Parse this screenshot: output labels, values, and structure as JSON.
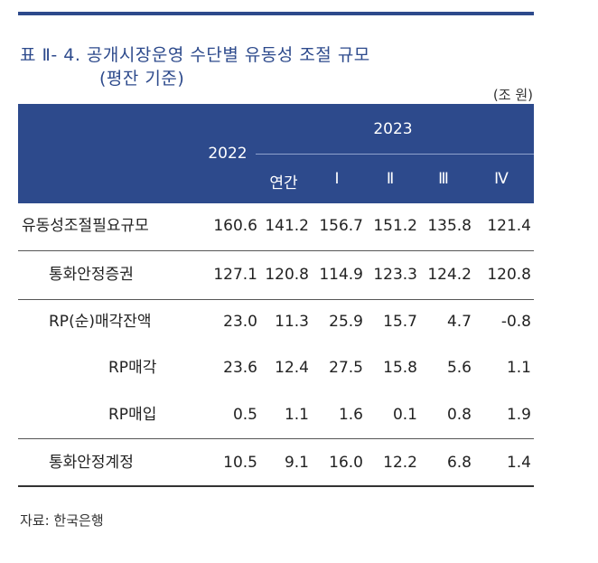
{
  "title_line1": "표 Ⅱ- 4. 공개시장운영 수단별 유동성 조절 규모",
  "title_line2": "(평잔 기준)",
  "unit": "(조 원)",
  "header": {
    "col_2022": "2022",
    "col_2023": "2023",
    "sub": [
      "연간",
      "Ⅰ",
      "Ⅱ",
      "Ⅲ",
      "Ⅳ"
    ]
  },
  "rows": [
    {
      "label": "유동성조절필요규모",
      "values": [
        "160.6",
        "141.2",
        "156.7",
        "151.2",
        "135.8",
        "121.4"
      ]
    },
    {
      "label": "통화안정증권",
      "values": [
        "127.1",
        "120.8",
        "114.9",
        "123.3",
        "124.2",
        "120.8"
      ]
    },
    {
      "label": "RP(순)매각잔액",
      "values": [
        "23.0",
        "11.3",
        "25.9",
        "15.7",
        "4.7",
        "-0.8"
      ]
    },
    {
      "label": "RP매각",
      "values": [
        "23.6",
        "12.4",
        "27.5",
        "15.8",
        "5.6",
        "1.1"
      ]
    },
    {
      "label": "RP매입",
      "values": [
        "0.5",
        "1.1",
        "1.6",
        "0.1",
        "0.8",
        "1.9"
      ]
    },
    {
      "label": "통화안정계정",
      "values": [
        "10.5",
        "9.1",
        "16.0",
        "12.2",
        "6.8",
        "1.4"
      ]
    }
  ],
  "source": "자료: 한국은행",
  "colors": {
    "header_bg": "#2d4a8c",
    "title": "#2d4a8c"
  }
}
